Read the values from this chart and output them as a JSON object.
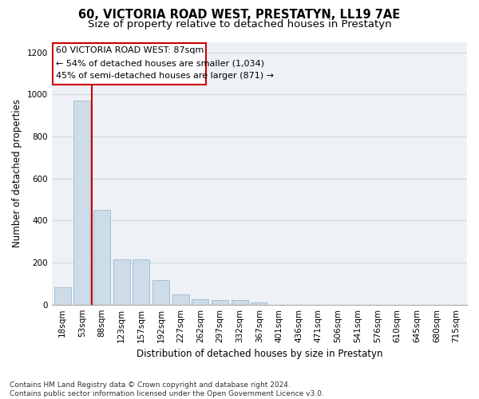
{
  "title": "60, VICTORIA ROAD WEST, PRESTATYN, LL19 7AE",
  "subtitle": "Size of property relative to detached houses in Prestatyn",
  "xlabel": "Distribution of detached houses by size in Prestatyn",
  "ylabel": "Number of detached properties",
  "categories": [
    "18sqm",
    "53sqm",
    "88sqm",
    "123sqm",
    "157sqm",
    "192sqm",
    "227sqm",
    "262sqm",
    "297sqm",
    "332sqm",
    "367sqm",
    "401sqm",
    "436sqm",
    "471sqm",
    "506sqm",
    "541sqm",
    "576sqm",
    "610sqm",
    "645sqm",
    "680sqm",
    "715sqm"
  ],
  "values": [
    83,
    970,
    452,
    215,
    215,
    118,
    47,
    25,
    22,
    20,
    12,
    0,
    0,
    0,
    0,
    0,
    0,
    0,
    0,
    0,
    0
  ],
  "bar_color": "#ccdce8",
  "bar_edge_color": "#a0b8cc",
  "grid_color": "#d0d8e0",
  "bg_color": "#eef2f6",
  "annotation_line1": "60 VICTORIA ROAD WEST: 87sqm",
  "annotation_line2": "← 54% of detached houses are smaller (1,034)",
  "annotation_line3": "45% of semi-detached houses are larger (871) →",
  "vline_color": "#cc0000",
  "box_color": "#cc0000",
  "ylim": [
    0,
    1250
  ],
  "yticks": [
    0,
    200,
    400,
    600,
    800,
    1000,
    1200
  ],
  "footnote": "Contains HM Land Registry data © Crown copyright and database right 2024.\nContains public sector information licensed under the Open Government Licence v3.0.",
  "title_fontsize": 10.5,
  "subtitle_fontsize": 9.5,
  "xlabel_fontsize": 8.5,
  "ylabel_fontsize": 8.5,
  "tick_fontsize": 7.5,
  "annotation_fontsize": 8.0,
  "footnote_fontsize": 6.5
}
